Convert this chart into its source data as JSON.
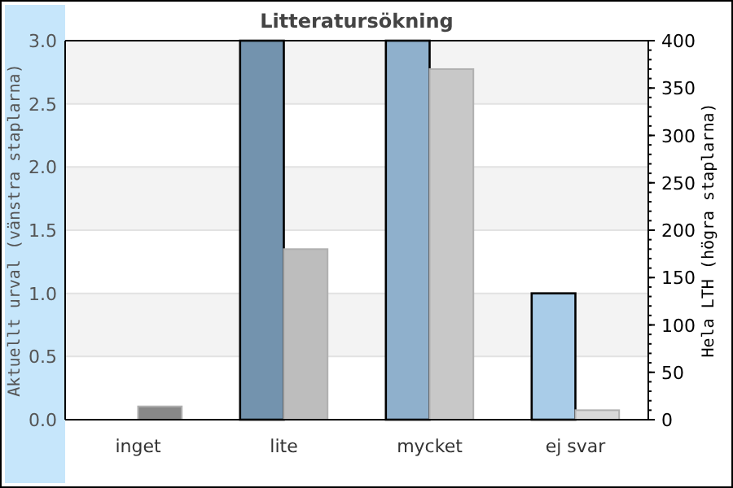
{
  "chart_data": {
    "type": "bar",
    "title": "Litteratursökning",
    "categories": [
      "inget",
      "lite",
      "mycket",
      "ej svar"
    ],
    "ylabel": "Aktuellt urval (vänstra staplarna)",
    "y2label": "Hela LTH (högra staplarna)",
    "ylim": [
      0,
      3
    ],
    "yticks": [
      {
        "value": 0,
        "label": "0.0"
      },
      {
        "value": 0.5,
        "label": "0.5"
      },
      {
        "value": 1,
        "label": "1.0"
      },
      {
        "value": 1.5,
        "label": "1.5"
      },
      {
        "value": 2,
        "label": "2.0"
      },
      {
        "value": 2.5,
        "label": "2.5"
      },
      {
        "value": 3,
        "label": "3.0"
      }
    ],
    "y2lim": [
      0,
      400
    ],
    "y2ticks": [
      0,
      50,
      100,
      150,
      200,
      250,
      300,
      350,
      400
    ],
    "grid": "y",
    "series": [
      {
        "colors": [
          "#707070",
          "#7393ae",
          "#8fb0cc",
          "#a9cce8"
        ],
        "values": [
          0,
          3,
          3,
          1
        ]
      },
      {
        "axis": "y2",
        "colors": [
          "#888888",
          "#bdbdbd",
          "#c8c8c8",
          "#d9d9d9"
        ],
        "values": [
          14,
          180,
          370,
          10
        ]
      }
    ]
  }
}
